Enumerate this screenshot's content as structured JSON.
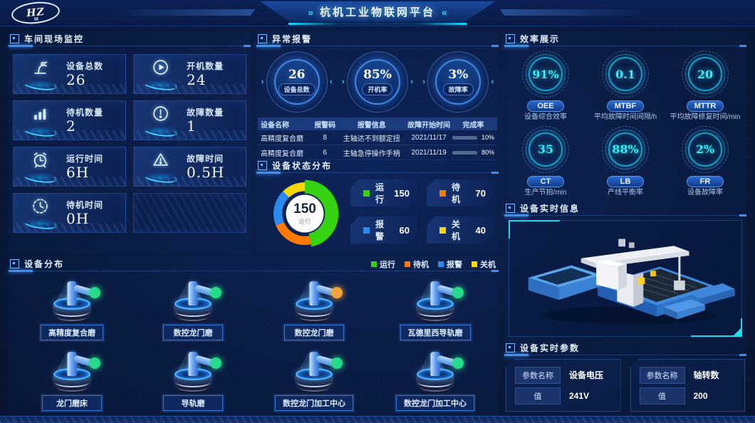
{
  "icons": {
    "title_chevron_right": "»",
    "title_chevron_left": "«",
    "badge_arrow_in_left": "›",
    "badge_arrow_in_right": "‹"
  },
  "colors": {
    "accent": "#3d8ef0",
    "cyan": "#19d8f0",
    "progress": "#00d8e8"
  },
  "header": {
    "title": "杭机工业物联网平台",
    "logo_hz": "HZ",
    "logo_m": "M"
  },
  "monitor_panel": {
    "title": "车间现场监控",
    "cards": [
      {
        "label": "设备总数",
        "value": "26",
        "icon": "robot-arm-icon"
      },
      {
        "label": "开机数量",
        "value": "24",
        "icon": "play-icon"
      },
      {
        "label": "待机数量",
        "value": "2",
        "icon": "bars-icon"
      },
      {
        "label": "故障数量",
        "value": "1",
        "icon": "alert-circle-icon"
      },
      {
        "label": "运行时间",
        "value": "6H",
        "icon": "alarm-clock-icon"
      },
      {
        "label": "故障时间",
        "value": "0.5H",
        "icon": "warning-triangle-icon"
      },
      {
        "label": "待机时间",
        "value": "0H",
        "icon": "standby-clock-icon"
      }
    ]
  },
  "alarm_panel": {
    "title": "异常报警",
    "stats": [
      {
        "value": "26",
        "label": "设备总数"
      },
      {
        "value": "85%",
        "label": "开机率"
      },
      {
        "value": "3%",
        "label": "故障率"
      }
    ],
    "table": {
      "headers": [
        "设备名称",
        "报警码",
        "报警信息",
        "故障开始时间",
        "完成率"
      ],
      "rows": [
        {
          "device": "高精度复合磨",
          "code": "8",
          "message": "主轴达不到额定扭",
          "start": "2021/11/17",
          "progress": 10,
          "progress_label": "10%"
        },
        {
          "device": "高精度复合磨",
          "code": "6",
          "message": "主轴急停操作手柄",
          "start": "2021/11/19",
          "progress": 80,
          "progress_label": "80%"
        }
      ]
    }
  },
  "status_panel": {
    "title": "设备状态分布",
    "center_value": "150",
    "center_label": "运行",
    "legend": [
      {
        "label": "运行",
        "value": "150",
        "color": "#35d212"
      },
      {
        "label": "待机",
        "value": "70",
        "color": "#ff7a00"
      },
      {
        "label": "报警",
        "value": "60",
        "color": "#2a8af0"
      },
      {
        "label": "关机",
        "value": "40",
        "color": "#f5d800"
      }
    ]
  },
  "distribution_panel": {
    "title": "设备分布",
    "legend": [
      {
        "label": "运行",
        "color": "#35d212"
      },
      {
        "label": "待机",
        "color": "#ff7a00"
      },
      {
        "label": "报警",
        "color": "#2a8af0"
      },
      {
        "label": "关机",
        "color": "#f5d800"
      }
    ],
    "status_colors": {
      "running": "#27d98b",
      "standby": "#f2a33c"
    },
    "machines": [
      {
        "label": "高精度复合磨",
        "status": "running"
      },
      {
        "label": "数控龙门磨",
        "status": "running"
      },
      {
        "label": "数控龙门磨",
        "status": "standby"
      },
      {
        "label": "瓦德里西导轨磨",
        "status": "running"
      },
      {
        "label": "龙门磨床",
        "status": "running"
      },
      {
        "label": "导轨磨",
        "status": "running"
      },
      {
        "label": "数控龙门加工中心",
        "status": "running"
      },
      {
        "label": "数控龙门加工中心",
        "status": "running"
      }
    ]
  },
  "efficiency_panel": {
    "title": "效率展示",
    "gauges": [
      {
        "value": "91%",
        "code": "OEE",
        "desc": "设备综合效率"
      },
      {
        "value": "0.1",
        "code": "MTBF",
        "desc": "平均故障时间间隔/h"
      },
      {
        "value": "20",
        "code": "MTTR",
        "desc": "平均故障修复时间/min"
      },
      {
        "value": "35",
        "code": "CT",
        "desc": "生产节拍/min"
      },
      {
        "value": "88%",
        "code": "LB",
        "desc": "产线平衡率"
      },
      {
        "value": "2%",
        "code": "FR",
        "desc": "设备故障率"
      }
    ]
  },
  "realtime_info_panel": {
    "title": "设备实时信息"
  },
  "realtime_params_panel": {
    "title": "设备实时参数",
    "params": [
      {
        "name_label": "参数名称",
        "name": "设备电压",
        "value_label": "值",
        "value": "241V"
      },
      {
        "name_label": "参数名称",
        "name": "轴转数",
        "value_label": "值",
        "value": "200"
      }
    ]
  }
}
